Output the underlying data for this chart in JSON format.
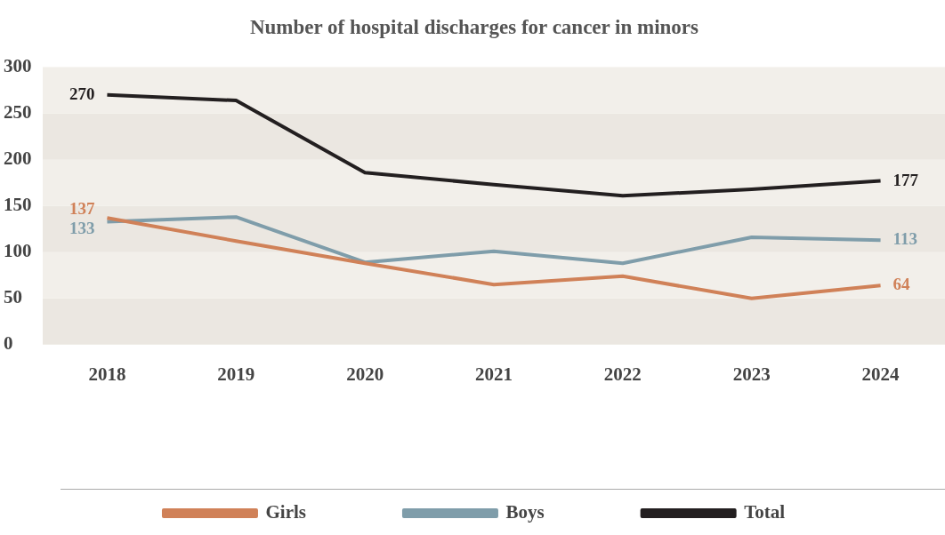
{
  "chart_data": {
    "type": "line",
    "title": "Number of hospital discharges for cancer in minors",
    "categories": [
      "2018",
      "2019",
      "2020",
      "2021",
      "2022",
      "2023",
      "2024"
    ],
    "series": [
      {
        "name": "Girls",
        "color": "#d08158",
        "values": [
          137,
          112,
          88,
          65,
          74,
          50,
          64
        ],
        "value_labels": [
          "137",
          null,
          null,
          null,
          null,
          null,
          "64"
        ]
      },
      {
        "name": "Boys",
        "color": "#7f9daa",
        "values": [
          133,
          138,
          89,
          101,
          88,
          116,
          113
        ],
        "value_labels": [
          "133",
          null,
          null,
          null,
          null,
          null,
          "113"
        ]
      },
      {
        "name": "Total",
        "color": "#231f20",
        "values": [
          270,
          264,
          186,
          173,
          161,
          168,
          177
        ],
        "value_labels": [
          "270",
          null,
          null,
          null,
          null,
          null,
          "177"
        ]
      }
    ],
    "ylim": [
      0,
      300
    ],
    "yticks": [
      0,
      50,
      100,
      150,
      200,
      250,
      300
    ],
    "legend": "bottom",
    "marker": "none",
    "line_style": "solid"
  }
}
